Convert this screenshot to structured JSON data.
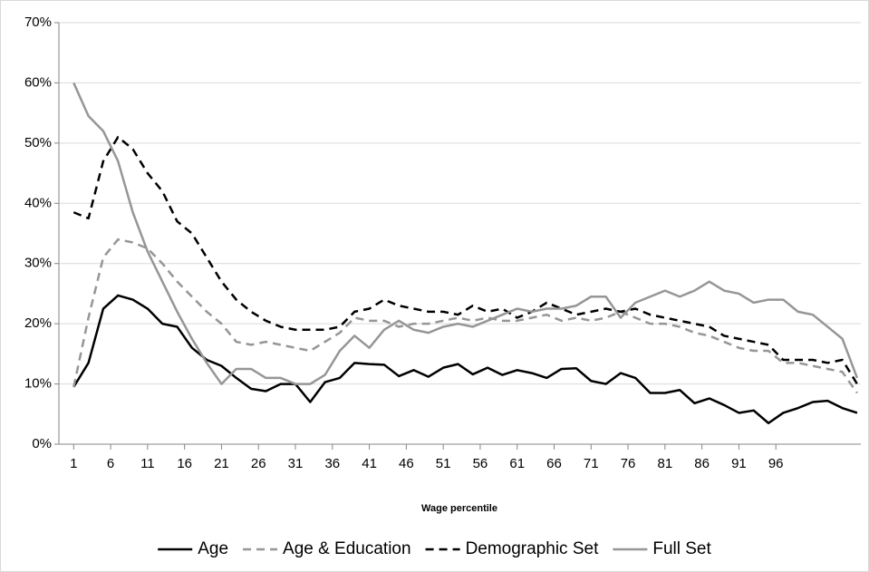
{
  "chart_data": {
    "type": "line",
    "x_label": "Wage percentile",
    "x": [
      1,
      3,
      5,
      7,
      9,
      11,
      13,
      15,
      17,
      19,
      21,
      23,
      25,
      27,
      29,
      31,
      33,
      35,
      37,
      39,
      41,
      43,
      45,
      47,
      49,
      51,
      53,
      55,
      57,
      59,
      61,
      63,
      65,
      67,
      69,
      71,
      73,
      75,
      77,
      79,
      81,
      83,
      85,
      87,
      89,
      91,
      93,
      95,
      97,
      99,
      101,
      103,
      105,
      107
    ],
    "xlim": [
      -1,
      107.5
    ],
    "xticks": [
      1,
      6,
      11,
      16,
      21,
      26,
      31,
      36,
      41,
      46,
      51,
      56,
      61,
      66,
      71,
      76,
      81,
      86,
      91,
      96
    ],
    "ylim": [
      0,
      70
    ],
    "yticks": [
      {
        "value": 0,
        "label": "0%"
      },
      {
        "value": 10,
        "label": "10%"
      },
      {
        "value": 20,
        "label": "20%"
      },
      {
        "value": 30,
        "label": "30%"
      },
      {
        "value": 40,
        "label": "40%"
      },
      {
        "value": 50,
        "label": "50%"
      },
      {
        "value": 60,
        "label": "60%"
      },
      {
        "value": 70,
        "label": "70%"
      }
    ],
    "grid": true,
    "legend": "bottom",
    "series": [
      {
        "name": "Age",
        "color": "#000000",
        "dashed": false,
        "values": [
          9.5,
          13.5,
          22.5,
          24.7,
          24,
          22.5,
          20,
          19.5,
          16,
          14,
          13,
          11,
          9.2,
          8.8,
          10,
          10,
          7,
          10.3,
          11,
          13.5,
          13.3,
          13.2,
          11.3,
          12.3,
          11.2,
          12.7,
          13.3,
          11.6,
          12.7,
          11.5,
          12.3,
          11.8,
          11,
          12.5,
          12.6,
          10.5,
          10,
          11.8,
          11,
          8.5,
          8.5,
          9,
          6.8,
          7.6,
          6.5,
          5.2,
          5.6,
          3.5,
          5.2,
          6,
          7,
          7.2,
          6,
          5.2
        ]
      },
      {
        "name": "Age & Education",
        "color": "#969696",
        "dashed": true,
        "values": [
          9.5,
          21,
          31,
          34,
          33.5,
          32.5,
          30,
          27,
          24.5,
          22,
          20,
          17,
          16.5,
          17,
          16.5,
          16,
          15.5,
          17,
          18.5,
          21,
          20.5,
          20.5,
          19.5,
          20,
          20,
          20.5,
          21,
          20.5,
          21,
          20.5,
          20.5,
          21,
          21.5,
          20.5,
          21,
          20.5,
          21,
          22,
          21,
          20,
          20,
          19.5,
          18.5,
          18,
          17,
          16,
          15.5,
          15.5,
          13.5,
          13.5,
          13,
          12.5,
          12,
          8.5
        ]
      },
      {
        "name": "Demographic Set",
        "color": "#000000",
        "dashed": true,
        "values": [
          38.5,
          37.5,
          47,
          51,
          49,
          45,
          42,
          37,
          35,
          31,
          27,
          24,
          22,
          20.5,
          19.5,
          19,
          19,
          19,
          19.5,
          22,
          22.5,
          24,
          23,
          22.5,
          22,
          22,
          21.5,
          23,
          22,
          22.5,
          21,
          22,
          23.5,
          22.5,
          21.5,
          22,
          22.5,
          22,
          22.5,
          21.5,
          21,
          20.5,
          20,
          19.5,
          18,
          17.5,
          17,
          16.5,
          14,
          14,
          14,
          13.5,
          14,
          10
        ]
      },
      {
        "name": "Full Set",
        "color": "#969696",
        "dashed": false,
        "values": [
          60,
          54.5,
          52,
          47,
          38.5,
          32,
          27,
          22,
          17.5,
          13.5,
          10,
          12.5,
          12.5,
          11,
          11,
          10,
          10,
          11.5,
          15.5,
          18,
          16,
          19,
          20.5,
          19,
          18.5,
          19.5,
          20,
          19.5,
          20.5,
          21.5,
          22.5,
          22,
          22.5,
          22.5,
          23,
          24.5,
          24.5,
          21,
          23.5,
          24.5,
          25.5,
          24.5,
          25.5,
          27,
          25.5,
          25,
          23.5,
          24,
          24,
          22,
          21.5,
          19.5,
          17.5,
          11
        ]
      }
    ]
  }
}
